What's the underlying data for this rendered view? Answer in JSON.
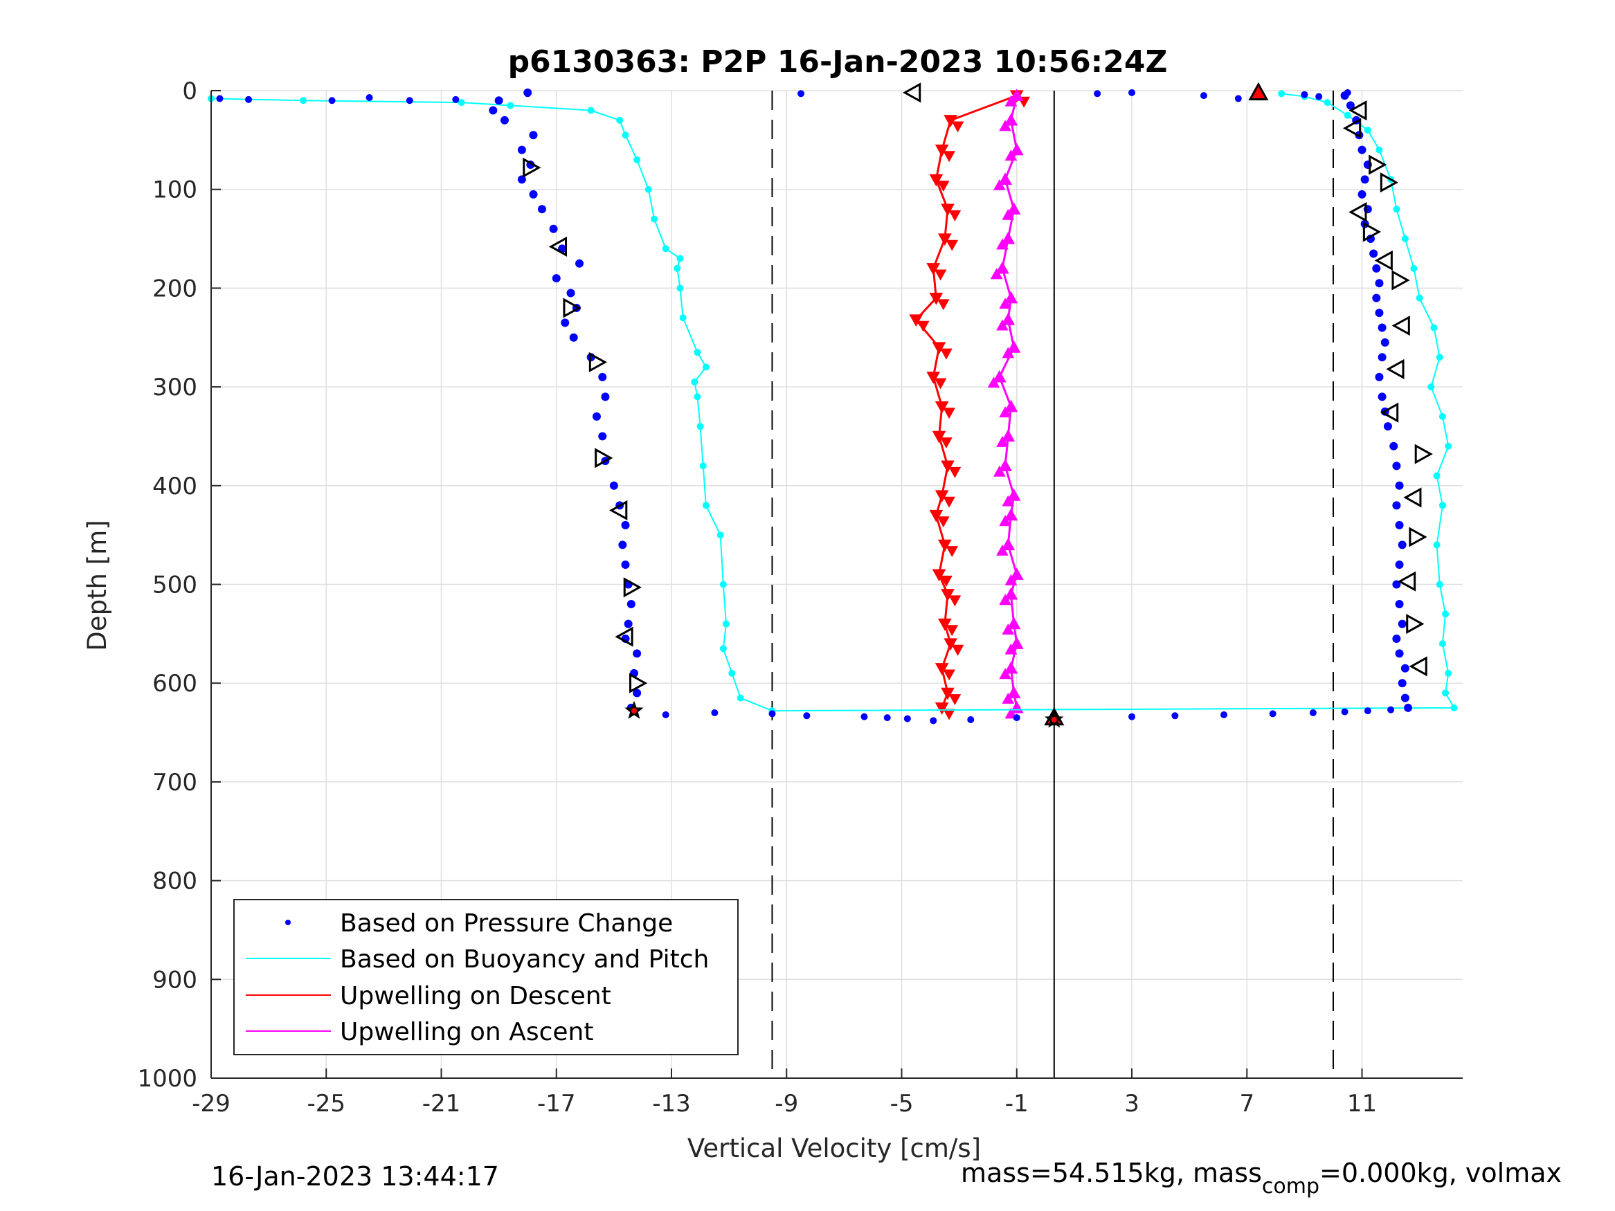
{
  "chart_data": {
    "type": "scatter",
    "title": "p6130363: P2P 16-Jan-2023 10:56:24Z",
    "xlabel": "Vertical Velocity [cm/s]",
    "ylabel": "Depth [m]",
    "xlim": [
      -29,
      14.5
    ],
    "ylim": [
      0,
      1000
    ],
    "y_reversed": true,
    "xticks": [
      -29,
      -25,
      -21,
      -17,
      -13,
      -9,
      -5,
      -1,
      3,
      7,
      11
    ],
    "yticks": [
      0,
      100,
      200,
      300,
      400,
      500,
      600,
      700,
      800,
      900,
      1000
    ],
    "grid": true,
    "legend_position": "bottom-left",
    "reference_lines": {
      "dashed_x": [
        -9.5,
        10
      ],
      "solid_x": [
        0.3
      ]
    },
    "colors": {
      "pressure": "#0000ff",
      "buoyancy": "#00ffff",
      "upwelling_descent": "#ff0000",
      "upwelling_ascent": "#ff00ff",
      "axes": "#262626",
      "grid": "#dfdfdf"
    },
    "series": [
      {
        "name": "Based on Pressure Change",
        "style": "dots",
        "color": "#0000ff",
        "descent": {
          "depth": [
            2,
            10,
            20,
            30,
            45,
            60,
            75,
            90,
            105,
            120,
            140,
            160,
            175,
            190,
            205,
            220,
            235,
            250,
            270,
            290,
            310,
            330,
            350,
            375,
            400,
            420,
            440,
            460,
            480,
            500,
            520,
            540,
            555,
            570,
            590,
            610,
            625
          ],
          "velocity": [
            -18,
            -19,
            -19.2,
            -18.8,
            -17.8,
            -18.2,
            -17.9,
            -18.2,
            -17.8,
            -17.5,
            -17.1,
            -16.8,
            -16.2,
            -17,
            -16.5,
            -16.3,
            -16.7,
            -16.4,
            -15.8,
            -15.4,
            -15.3,
            -15.6,
            -15.4,
            -15.3,
            -15,
            -14.8,
            -14.6,
            -14.7,
            -14.6,
            -14.5,
            -14.4,
            -14.5,
            -14.6,
            -14.2,
            -14.3,
            -14.2,
            -14.4
          ]
        },
        "ascent": {
          "depth": [
            625,
            615,
            600,
            585,
            570,
            555,
            540,
            520,
            500,
            480,
            460,
            440,
            420,
            400,
            380,
            360,
            340,
            325,
            310,
            290,
            270,
            255,
            240,
            225,
            210,
            195,
            180,
            165,
            150,
            135,
            120,
            105,
            90,
            75,
            60,
            45,
            30,
            15,
            5
          ],
          "velocity": [
            12.6,
            12.5,
            12.4,
            12.5,
            12.3,
            12.2,
            12.4,
            12.3,
            12.2,
            12.3,
            12.4,
            12.3,
            12.2,
            12.3,
            12.2,
            12.1,
            11.9,
            11.8,
            11.7,
            11.6,
            11.7,
            11.8,
            11.7,
            11.6,
            11.5,
            11.6,
            11.5,
            11.4,
            11.3,
            11.1,
            11.2,
            11.0,
            11.1,
            11.2,
            11.0,
            10.9,
            10.8,
            10.6,
            10.4
          ]
        },
        "surface": {
          "depth": [
            8,
            9,
            10,
            7,
            10,
            9,
            3,
            3,
            3,
            2,
            5,
            8,
            4,
            6,
            2
          ],
          "velocity": [
            -28.7,
            -27.7,
            -24.8,
            -23.5,
            -22.1,
            -20.5,
            -18,
            -8.5,
            1.8,
            3,
            5.5,
            6.7,
            9,
            9.5,
            10.5
          ]
        },
        "bottom": {
          "depth": [
            632,
            630,
            631,
            633,
            634,
            635,
            636,
            638,
            637,
            635,
            634,
            633,
            632,
            631,
            630,
            629,
            628,
            627
          ],
          "velocity": [
            -13.2,
            -11.5,
            -9.5,
            -8.3,
            -6.3,
            -5.5,
            -4.8,
            -3.9,
            -2.6,
            -1.0,
            3.0,
            4.5,
            6.2,
            7.9,
            9.3,
            10.4,
            11.2,
            12.0
          ]
        }
      },
      {
        "name": "Based on Buoyancy and Pitch",
        "style": "line+dots",
        "color": "#00ffff",
        "descent": {
          "depth": [
            8,
            10,
            12,
            15,
            20,
            30,
            45,
            70,
            100,
            130,
            160,
            170,
            180,
            200,
            230,
            265,
            280,
            295,
            310,
            340,
            380,
            420,
            450,
            500,
            540,
            565,
            590,
            615,
            628
          ],
          "velocity": [
            -29,
            -25.8,
            -20.3,
            -18.6,
            -15.8,
            -14.8,
            -14.6,
            -14.2,
            -13.8,
            -13.6,
            -13.2,
            -12.7,
            -12.8,
            -12.7,
            -12.6,
            -12.1,
            -11.8,
            -12.2,
            -12.1,
            -12,
            -11.9,
            -11.8,
            -11.3,
            -11.2,
            -11.1,
            -11.2,
            -10.9,
            -10.6,
            -9.5
          ]
        },
        "ascent": {
          "depth": [
            625,
            610,
            590,
            560,
            530,
            500,
            460,
            420,
            390,
            360,
            330,
            300,
            270,
            240,
            210,
            180,
            150,
            120,
            90,
            60,
            40,
            25,
            12,
            6,
            3
          ],
          "velocity": [
            14.2,
            13.9,
            14.0,
            13.8,
            13.9,
            13.7,
            13.6,
            13.8,
            13.6,
            14.0,
            13.8,
            13.4,
            13.7,
            13.5,
            13.0,
            12.8,
            12.5,
            12.2,
            12.0,
            11.6,
            11.2,
            10.5,
            9.8,
            9.0,
            8.2
          ]
        }
      },
      {
        "name": "Upwelling on Descent",
        "style": "triangles-down",
        "color": "#ff0000",
        "depth": [
          5,
          30,
          60,
          90,
          120,
          150,
          180,
          210,
          232,
          260,
          290,
          320,
          350,
          380,
          410,
          430,
          460,
          490,
          510,
          540,
          560,
          585,
          610,
          625
        ],
        "velocity": [
          -1,
          -3.3,
          -3.6,
          -3.8,
          -3.4,
          -3.5,
          -3.9,
          -3.8,
          -4.5,
          -3.7,
          -3.9,
          -3.6,
          -3.7,
          -3.4,
          -3.6,
          -3.8,
          -3.5,
          -3.7,
          -3.4,
          -3.5,
          -3.3,
          -3.6,
          -3.4,
          -3.6
        ]
      },
      {
        "name": "Upwelling on Ascent",
        "style": "triangles-up",
        "color": "#ff00ff",
        "depth": [
          5,
          30,
          60,
          90,
          120,
          150,
          180,
          210,
          232,
          260,
          290,
          320,
          350,
          380,
          410,
          430,
          460,
          490,
          510,
          540,
          560,
          585,
          610,
          625
        ],
        "velocity": [
          -1,
          -1.2,
          -1.0,
          -1.4,
          -1.1,
          -1.3,
          -1.5,
          -1.2,
          -1.3,
          -1.1,
          -1.6,
          -1.2,
          -1.3,
          -1.4,
          -1.1,
          -1.2,
          -1.3,
          -1.0,
          -1.2,
          -1.1,
          -1.0,
          -1.2,
          -1.1,
          -1.0
        ]
      }
    ],
    "markers": {
      "open_left": [
        {
          "x": -4.6,
          "y": 2
        },
        {
          "x": -16.9,
          "y": 158
        },
        {
          "x": -14.8,
          "y": 425
        },
        {
          "x": -14.6,
          "y": 553
        },
        {
          "x": 10.9,
          "y": 20
        },
        {
          "x": 10.7,
          "y": 38
        },
        {
          "x": 10.9,
          "y": 123
        },
        {
          "x": 11.8,
          "y": 172
        },
        {
          "x": 12.2,
          "y": 282
        },
        {
          "x": 12.0,
          "y": 326
        },
        {
          "x": 12.8,
          "y": 412
        },
        {
          "x": 12.6,
          "y": 497
        },
        {
          "x": 13.0,
          "y": 583
        },
        {
          "x": 12.4,
          "y": 238
        }
      ],
      "open_right": [
        {
          "x": -17.9,
          "y": 78
        },
        {
          "x": -16.5,
          "y": 220
        },
        {
          "x": -15.4,
          "y": 372
        },
        {
          "x": -14.4,
          "y": 503
        },
        {
          "x": -14.2,
          "y": 600
        },
        {
          "x": -15.6,
          "y": 275
        },
        {
          "x": 11.5,
          "y": 75
        },
        {
          "x": 11.9,
          "y": 93
        },
        {
          "x": 11.3,
          "y": 143
        },
        {
          "x": 12.3,
          "y": 192
        },
        {
          "x": 13.1,
          "y": 368
        },
        {
          "x": 12.9,
          "y": 452
        },
        {
          "x": 12.8,
          "y": 540
        }
      ],
      "filled_up": [
        {
          "x": 7.4,
          "y": 2
        },
        {
          "x": 0.3,
          "y": 635
        }
      ],
      "stars": [
        {
          "x": -14.3,
          "y": 628
        },
        {
          "x": 0.3,
          "y": 637
        }
      ]
    }
  },
  "footer": {
    "timestamp": "16-Jan-2023 13:44:17",
    "mass_text": "mass=54.515kg, mass",
    "mass_sub": "comp",
    "mass_rest": "=0.000kg, volmax"
  }
}
